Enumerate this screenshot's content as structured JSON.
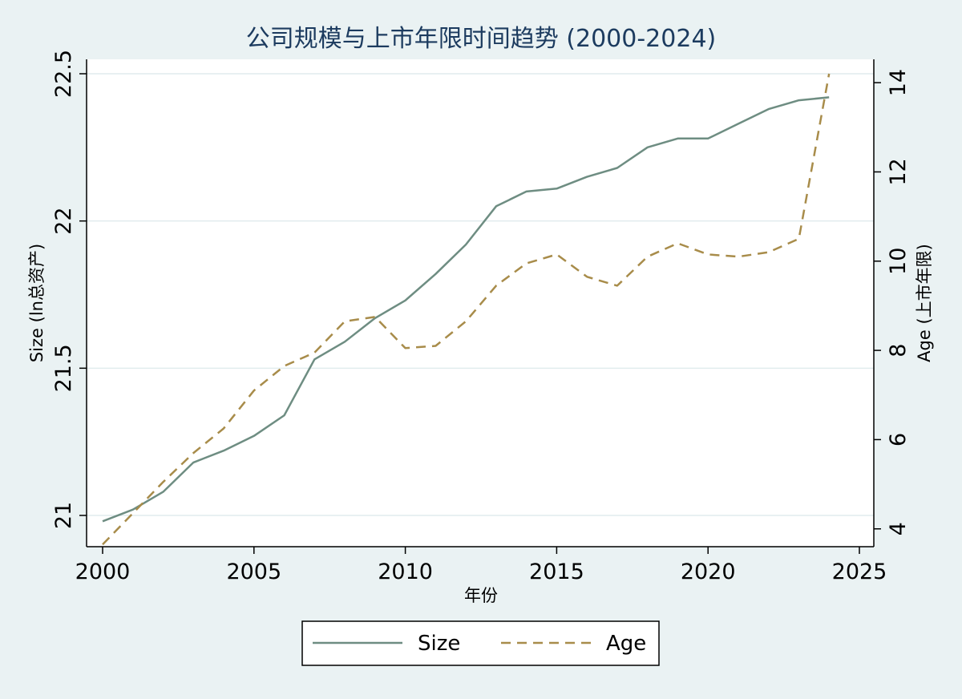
{
  "chart_data": {
    "type": "line",
    "title": "公司规模与上市年限时间趋势 (2000-2024)",
    "xlabel": "年份",
    "ylabel_left": "Size (ln总资产)",
    "ylabel_right": "Age (上市年限)",
    "x": [
      2000,
      2001,
      2002,
      2003,
      2004,
      2005,
      2006,
      2007,
      2008,
      2009,
      2010,
      2011,
      2012,
      2013,
      2014,
      2015,
      2016,
      2017,
      2018,
      2019,
      2020,
      2021,
      2022,
      2023,
      2024
    ],
    "xlim": [
      2000,
      2025
    ],
    "xticks": [
      2000,
      2005,
      2010,
      2015,
      2020,
      2025
    ],
    "ylim_left": [
      21,
      22.5
    ],
    "yticks_left": [
      21,
      21.5,
      22,
      22.5
    ],
    "ylim_right": [
      3.6,
      14.2
    ],
    "yticks_right": [
      4,
      6,
      8,
      10,
      12,
      14
    ],
    "grid": true,
    "legend_position": "bottom",
    "series": [
      {
        "name": "Size",
        "axis": "left",
        "color": "#6e8d82",
        "style": "solid",
        "values": [
          20.98,
          21.02,
          21.08,
          21.18,
          21.22,
          21.27,
          21.34,
          21.53,
          21.59,
          21.67,
          21.73,
          21.82,
          21.92,
          22.05,
          22.1,
          22.11,
          22.15,
          22.18,
          22.25,
          22.28,
          22.28,
          22.33,
          22.38,
          22.41,
          22.42
        ]
      },
      {
        "name": "Age",
        "axis": "right",
        "color": "#a88c4a",
        "style": "dashed",
        "values": [
          3.65,
          4.35,
          5.05,
          5.7,
          6.25,
          7.1,
          7.65,
          7.95,
          8.65,
          8.75,
          8.05,
          8.1,
          8.65,
          9.45,
          9.95,
          10.15,
          9.65,
          9.45,
          10.1,
          10.4,
          10.15,
          10.1,
          10.2,
          10.5,
          14.2
        ]
      }
    ]
  }
}
